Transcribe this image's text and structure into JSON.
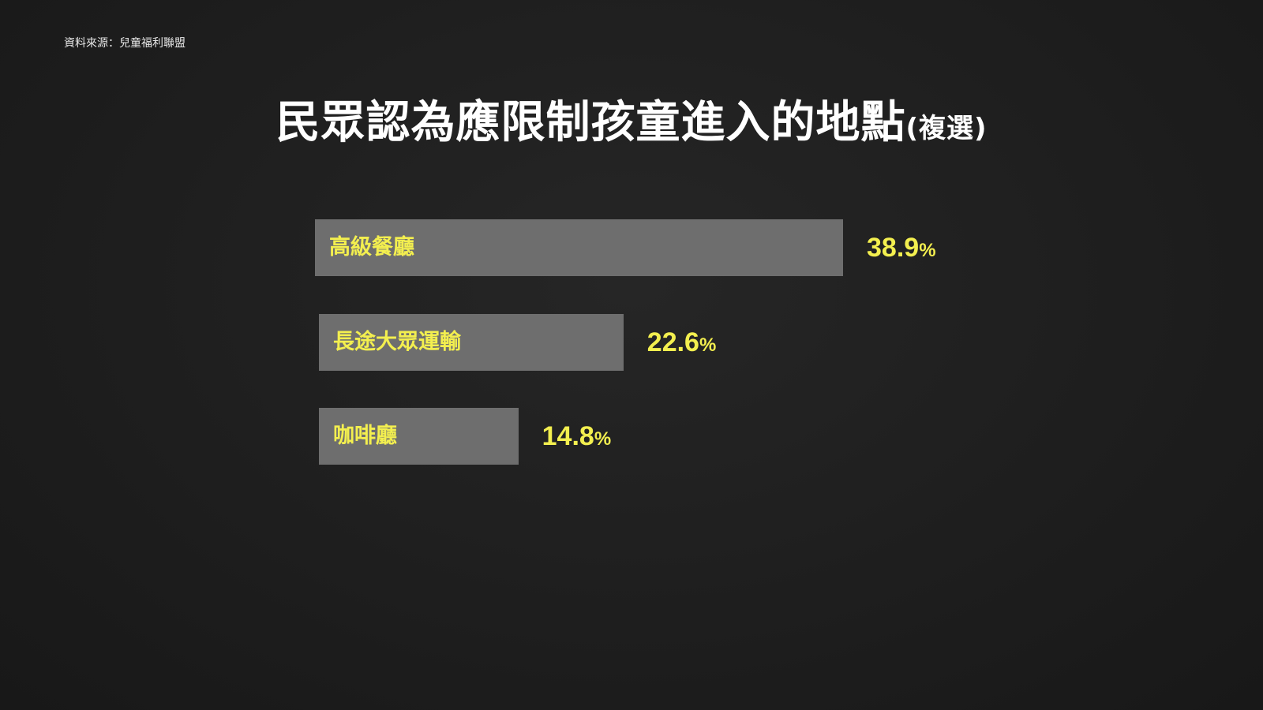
{
  "source": "資料來源：兒童福利聯盟",
  "chart_data": {
    "type": "bar",
    "orientation": "horizontal",
    "title": "民眾認為應限制孩童進入的地點",
    "subtitle": "(複選)",
    "categories": [
      "高級餐廳",
      "長途大眾運輸",
      "咖啡廳"
    ],
    "values": [
      38.9,
      22.6,
      14.8
    ],
    "value_unit": "%",
    "grid": false,
    "colors": {
      "bar": "#6e6e6e",
      "label": "#f3ef4f",
      "background": "#1f1f1f"
    }
  }
}
